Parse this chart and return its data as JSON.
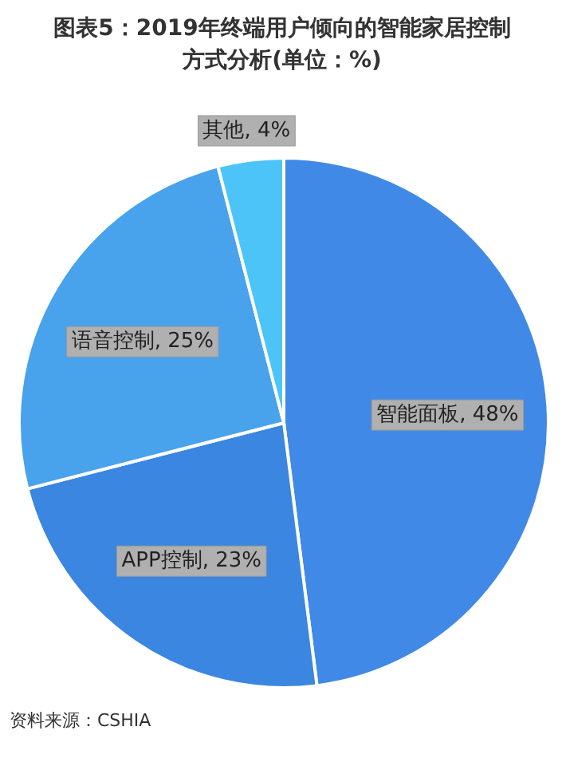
{
  "chart_data": {
    "type": "pie",
    "title": "图表5：2019年终端用户倾向的智能家居控制方式分析(单位：%)",
    "categories": [
      "智能面板",
      "APP控制",
      "语音控制",
      "其他"
    ],
    "values": [
      48,
      23,
      25,
      4
    ],
    "value_labels": [
      "48%",
      "23%",
      "25%",
      "4%"
    ],
    "colors": [
      "#4189e6",
      "#3a86e0",
      "#48a2ec",
      "#4cc4f7"
    ],
    "annotations": [
      "资料来源：CSHIA"
    ]
  }
}
